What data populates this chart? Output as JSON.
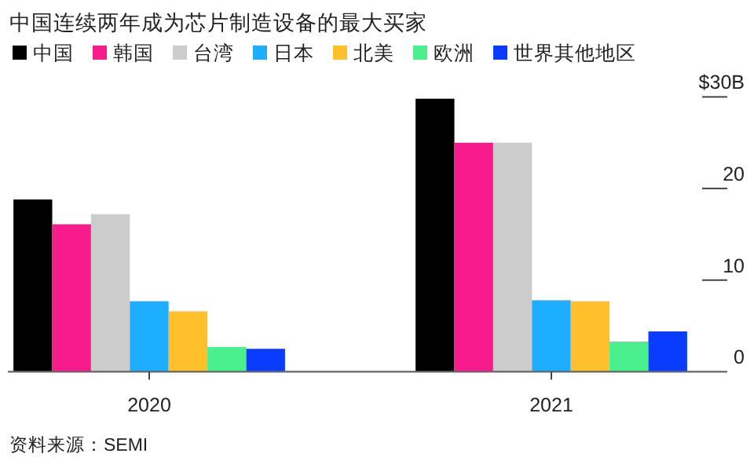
{
  "chart_data": {
    "type": "bar",
    "title": "中国连续两年成为芯片制造设备的最大买家",
    "categories": [
      "2020",
      "2021"
    ],
    "series": [
      {
        "name": "中国",
        "color": "#000000",
        "values": [
          18.8,
          29.8
        ]
      },
      {
        "name": "韩国",
        "color": "#f81b8b",
        "values": [
          16.1,
          25.0
        ]
      },
      {
        "name": "台湾",
        "color": "#cccccc",
        "values": [
          17.2,
          25.0
        ]
      },
      {
        "name": "日本",
        "color": "#1eaeff",
        "values": [
          7.7,
          7.8
        ]
      },
      {
        "name": "北美",
        "color": "#ffc02b",
        "values": [
          6.6,
          7.7
        ]
      },
      {
        "name": "欧洲",
        "color": "#4bf08e",
        "values": [
          2.7,
          3.3
        ]
      },
      {
        "name": "世界其他地区",
        "color": "#0a3cff",
        "values": [
          2.5,
          4.4
        ]
      }
    ],
    "ylim": [
      0,
      30
    ],
    "yticks": [
      {
        "value": 30,
        "label": "$30B"
      },
      20,
      10,
      0
    ],
    "legend": "top left",
    "grid": false,
    "annotations": [
      "资料来源：SEMI"
    ]
  }
}
